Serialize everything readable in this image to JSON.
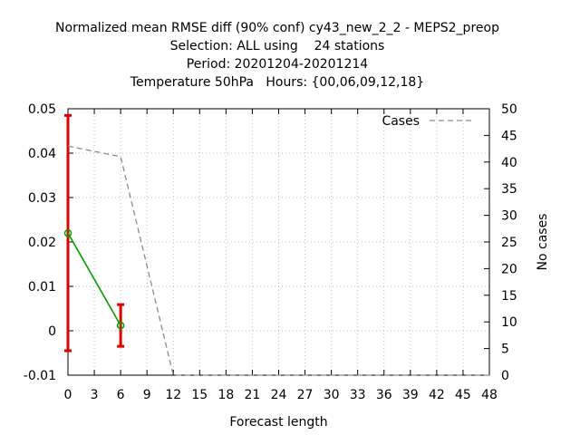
{
  "chart_data": {
    "type": "line",
    "title_lines": [
      "Normalized mean RMSE diff (90% conf) cy43_new_2_2 - MEPS2_preop",
      "Selection: ALL using    24 stations",
      "Period: 20201204-20201214",
      "Temperature 50hPa   Hours: {00,06,09,12,18}"
    ],
    "xlabel": "Forecast length",
    "ylabel": "",
    "y2label": "No cases",
    "xlim": [
      0,
      48
    ],
    "ylim": [
      -0.01,
      0.05
    ],
    "y2lim": [
      0,
      50
    ],
    "x_ticks": [
      "0",
      "3",
      "6",
      "9",
      "12",
      "15",
      "18",
      "21",
      "24",
      "27",
      "30",
      "33",
      "36",
      "39",
      "42",
      "45",
      "48"
    ],
    "y_ticks": [
      "-0.01",
      "0",
      "0.01",
      "0.02",
      "0.03",
      "0.04",
      "0.05"
    ],
    "y2_ticks": [
      "0",
      "5",
      "10",
      "15",
      "20",
      "25",
      "30",
      "35",
      "40",
      "45",
      "50"
    ],
    "grid": true,
    "legend_position": "top-right",
    "series": [
      {
        "name": "",
        "kind": "line_with_errorbars",
        "color": "#00a000",
        "errorbar_color": "#e00000",
        "x": [
          0,
          6
        ],
        "y": [
          0.022,
          0.0012
        ],
        "err_low": [
          -0.0045,
          -0.0035
        ],
        "err_high": [
          0.0485,
          0.0059
        ]
      },
      {
        "name": "Cases",
        "kind": "dashed_line",
        "axis": "y2",
        "color": "#8a8a8a",
        "x": [
          0,
          3,
          6,
          12,
          15,
          18,
          21,
          24,
          27,
          30,
          33,
          36,
          39,
          42,
          45,
          48
        ],
        "y": [
          43,
          42,
          41,
          0,
          0,
          0,
          0,
          0,
          0,
          0,
          0,
          0,
          0,
          0,
          0,
          0
        ]
      }
    ]
  }
}
